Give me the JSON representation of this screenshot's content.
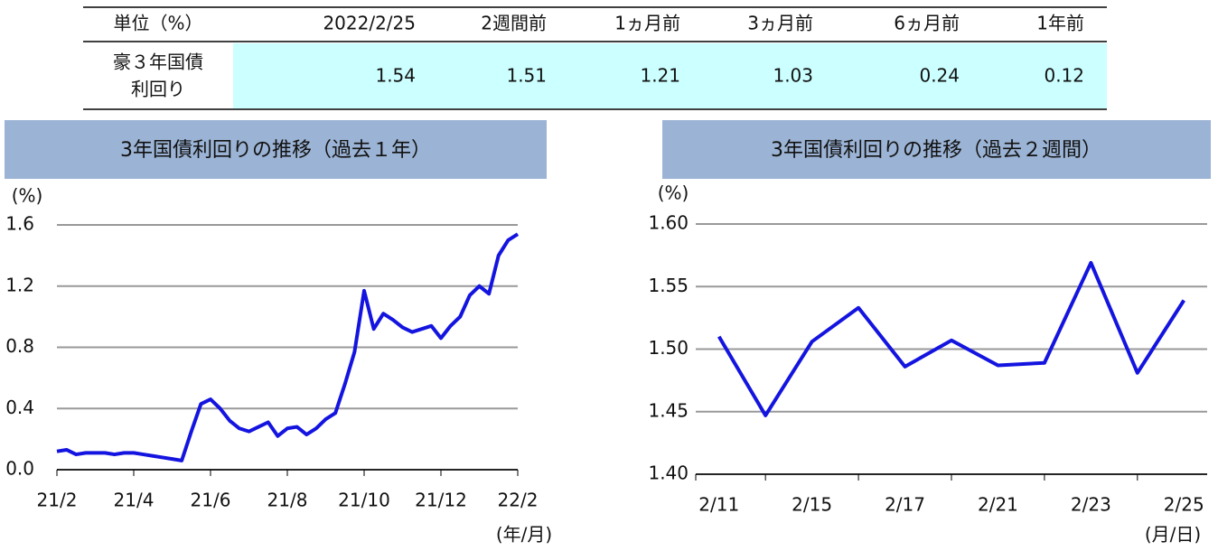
{
  "table": {
    "header": [
      "単位（%）",
      "2022/2/25",
      "2週間前",
      "1ヵ月前",
      "3ヵ月前",
      "6ヵ月前",
      "1年前"
    ],
    "row_label": [
      "豪３年国債",
      "利回り"
    ],
    "values": [
      1.54,
      1.51,
      1.21,
      1.03,
      0.24,
      0.12
    ]
  },
  "chart_data": [
    {
      "type": "line",
      "title": "3年国債利回りの推移（過去１年）",
      "y_label": "(%)",
      "x_label": "(年/月)",
      "categories": [
        "21/2",
        null,
        null,
        null,
        null,
        null,
        null,
        null,
        "21/4",
        null,
        null,
        null,
        null,
        null,
        null,
        null,
        "21/6",
        null,
        null,
        null,
        null,
        null,
        null,
        null,
        "21/8",
        null,
        null,
        null,
        null,
        null,
        null,
        null,
        "21/10",
        null,
        null,
        null,
        null,
        null,
        null,
        null,
        "21/12",
        null,
        null,
        null,
        null,
        null,
        null,
        null,
        "22/2"
      ],
      "series": [
        {
          "color": "#1414e0",
          "values": [
            0.12,
            0.13,
            0.1,
            0.11,
            0.11,
            0.11,
            0.1,
            0.11,
            0.11,
            0.1,
            0.09,
            0.08,
            0.07,
            0.06,
            0.25,
            0.43,
            0.46,
            0.4,
            0.32,
            0.27,
            0.25,
            0.28,
            0.31,
            0.22,
            0.27,
            0.28,
            0.23,
            0.27,
            0.33,
            0.37,
            0.56,
            0.77,
            1.17,
            0.92,
            1.02,
            0.98,
            0.93,
            0.9,
            0.92,
            0.94,
            0.86,
            0.94,
            1.0,
            1.14,
            1.2,
            1.15,
            1.4,
            1.5,
            1.54
          ]
        }
      ],
      "ylim": [
        0,
        1.6
      ],
      "yticks": [
        {
          "value": 0,
          "label": "0.0"
        },
        0.4,
        0.8,
        1.2,
        1.6
      ],
      "grid": true
    },
    {
      "type": "line",
      "title": "3年国債利回りの推移（過去２週間）",
      "y_label": "(%)",
      "x_label": "(月/日)",
      "categories": [
        "2/11",
        null,
        "2/15",
        null,
        "2/17",
        null,
        "2/21",
        null,
        "2/23",
        null,
        "2/25"
      ],
      "series": [
        {
          "color": "#1414e0",
          "values": [
            1.51,
            1.447,
            1.506,
            1.533,
            1.486,
            1.507,
            1.487,
            1.489,
            1.569,
            1.481,
            1.539
          ]
        }
      ],
      "ylim": [
        1.4,
        1.6
      ],
      "yticks": [
        {
          "value": 1.4,
          "label": "1.40"
        },
        1.45,
        {
          "value": 1.5,
          "label": "1.50"
        },
        1.55,
        {
          "value": 1.6,
          "label": "1.60"
        }
      ],
      "grid": true
    }
  ]
}
